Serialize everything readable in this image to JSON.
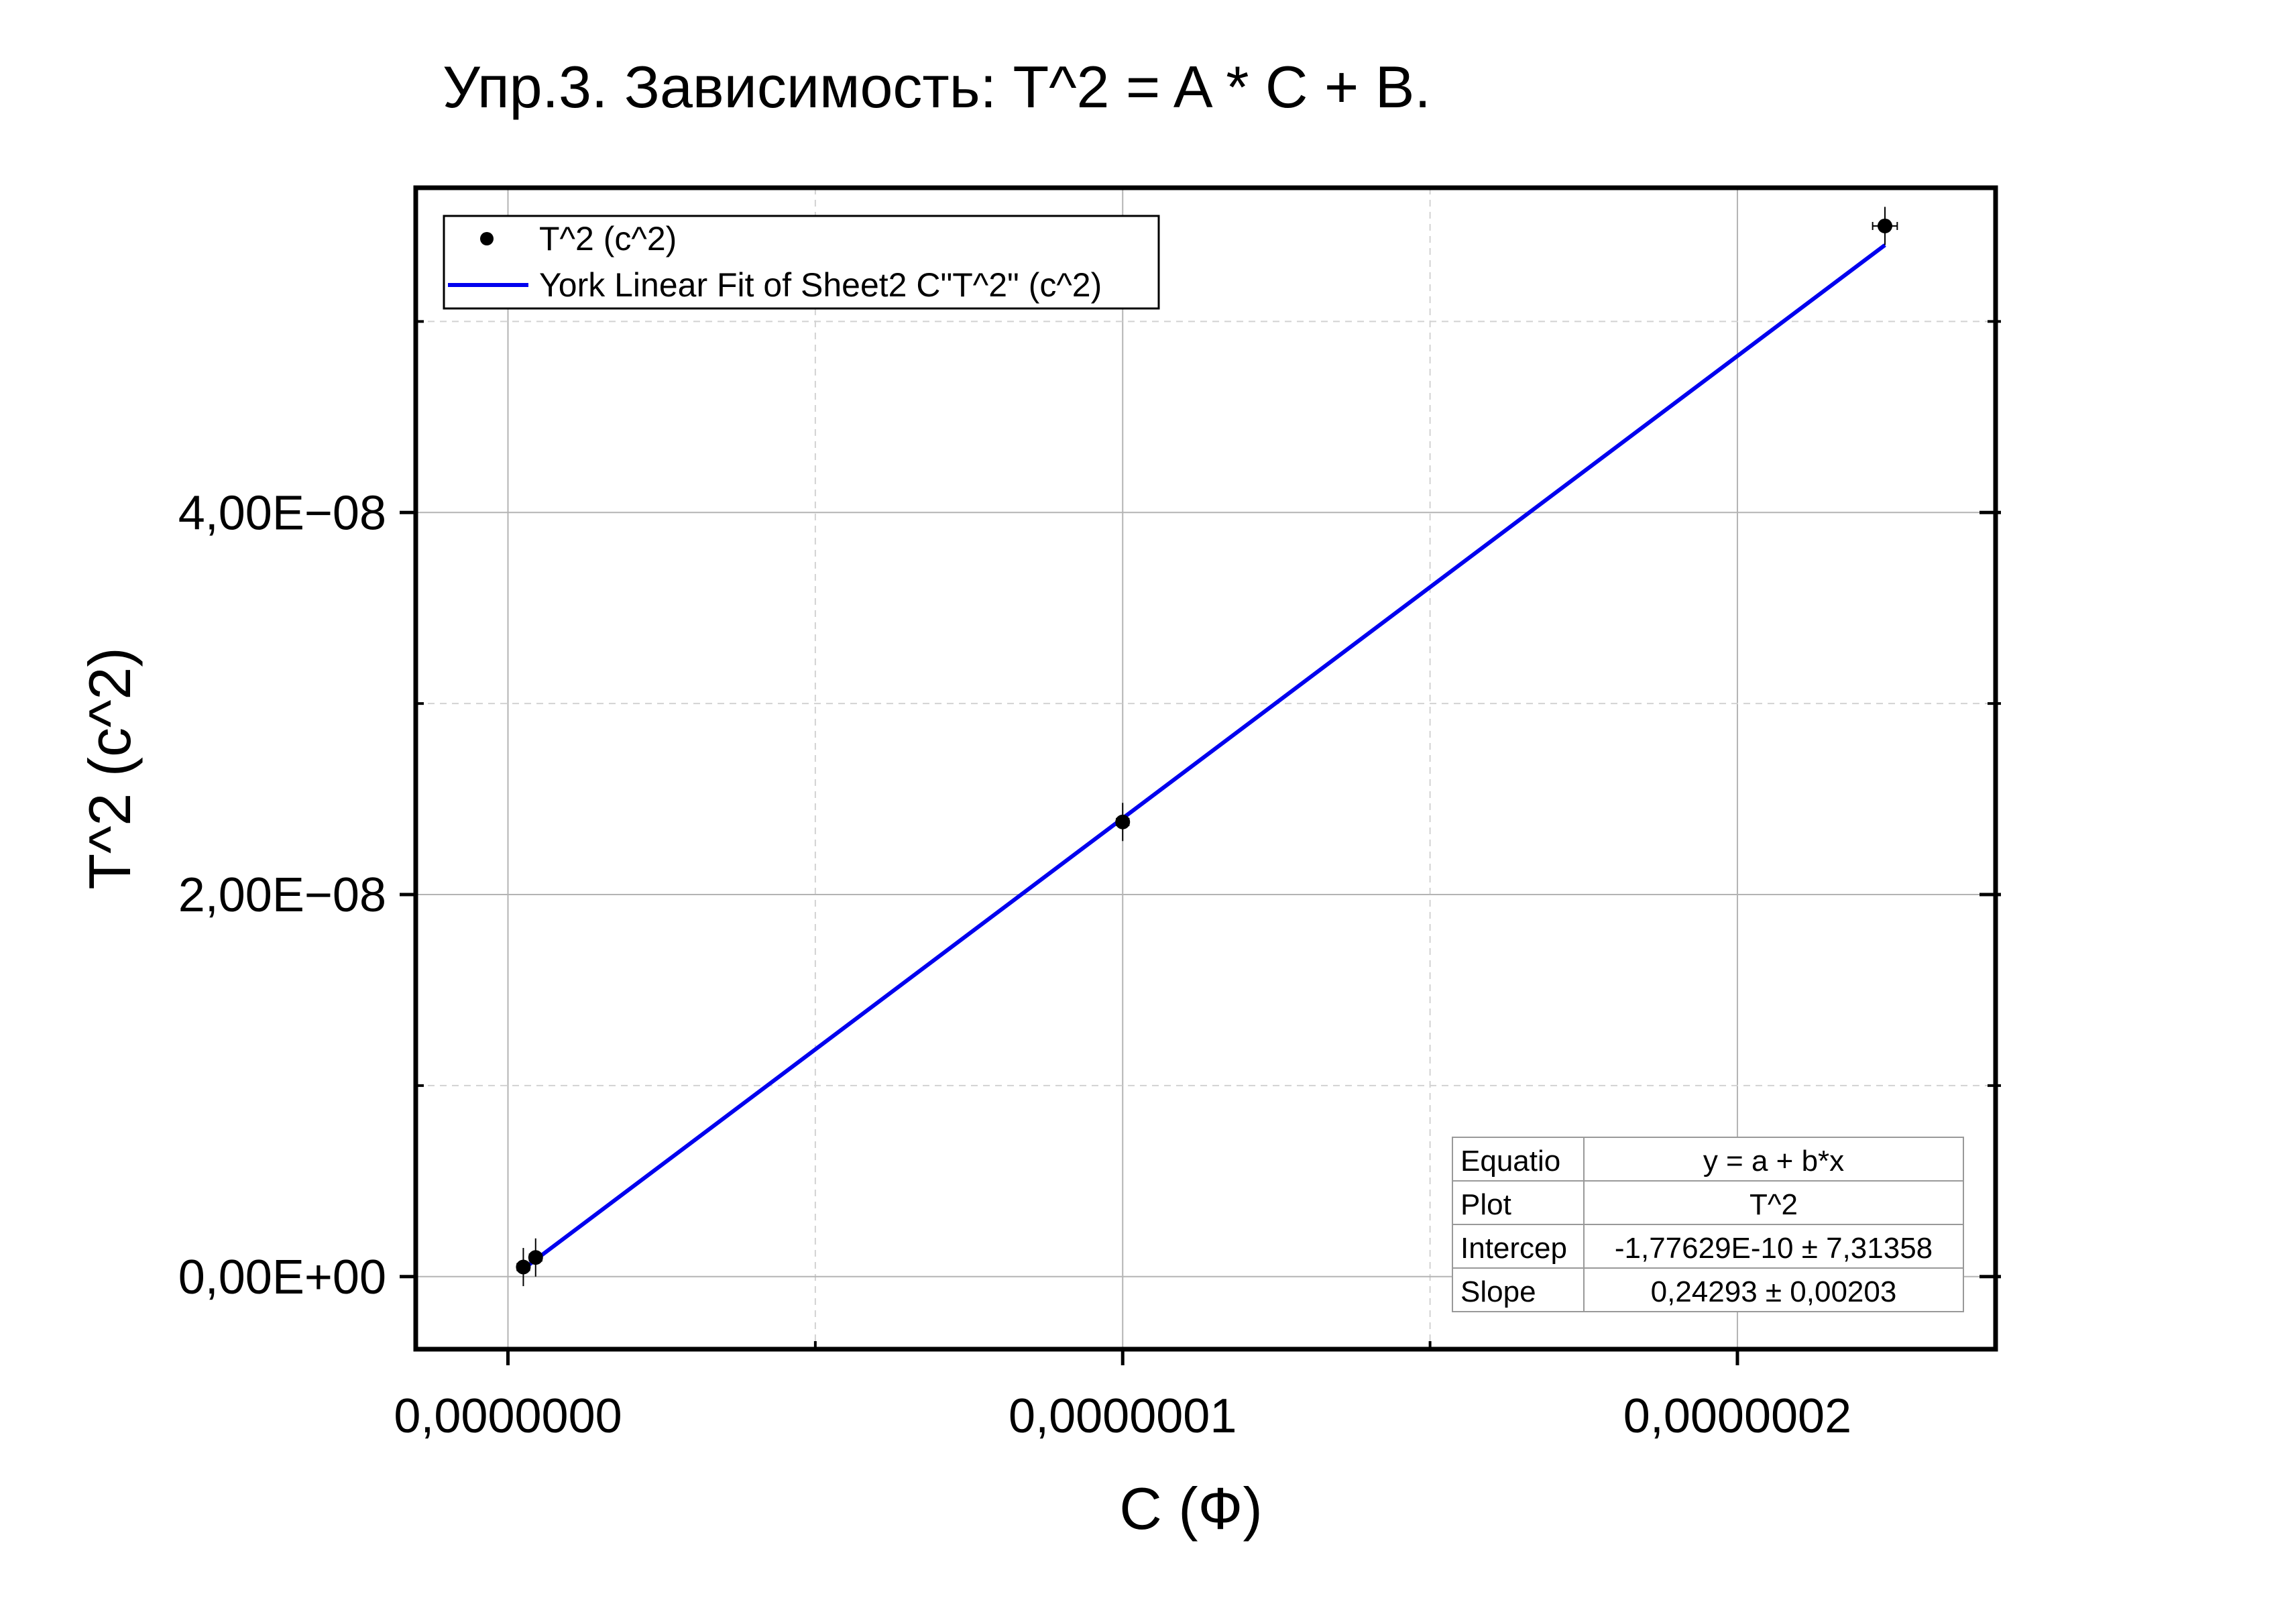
{
  "chart_data": {
    "type": "scatter",
    "title": "Упр.3. Зависимость: T^2 = A * C + B.",
    "xlabel": "C (Ф)",
    "ylabel": "T^2 (c^2)",
    "xlim": [
      -1.5e-08,
      2.42e-07
    ],
    "ylim": [
      -3.8e-09,
      5.7e-08
    ],
    "x_ticks": [
      0,
      1e-07,
      2e-07
    ],
    "x_tick_labels": [
      "0,0000000",
      "0,0000001",
      "0,0000002"
    ],
    "y_ticks": [
      0,
      2e-08,
      4e-08
    ],
    "y_tick_labels": [
      "0,00E+00",
      "2,00E−08",
      "4,00E−08"
    ],
    "x_minor_ticks": [
      5e-08,
      1.5e-07
    ],
    "y_minor_ticks": [
      1e-08,
      3e-08,
      5e-08
    ],
    "grid": true,
    "legend_position": "top-left",
    "series": [
      {
        "name": "T^2 (c^2)",
        "kind": "points",
        "color": "#000000",
        "x": [
          2.5e-09,
          4.5e-09,
          1e-07,
          2.24e-07
        ],
        "y": [
          5e-10,
          1e-09,
          2.38e-08,
          5.5e-08
        ],
        "x_err": [
          1e-09,
          1e-09,
          1e-09,
          2e-09
        ],
        "y_err": [
          1e-09,
          1e-09,
          1e-09,
          1e-09
        ]
      },
      {
        "name": "York Linear Fit of Sheet2 C\"T^2\" (c^2)",
        "kind": "line",
        "color": "#0000ee",
        "x": [
          2.5e-09,
          2.24e-07
        ],
        "y": [
          4e-10,
          5.4e-08
        ]
      }
    ],
    "fit_table": {
      "rows": [
        [
          "Equatio",
          "y = a + b*x"
        ],
        [
          "Plot",
          "T^2"
        ],
        [
          "Intercep",
          "-1,77629E-10 ± 7,31358"
        ],
        [
          "Slope",
          "0,24293 ± 0,00203"
        ]
      ]
    }
  }
}
